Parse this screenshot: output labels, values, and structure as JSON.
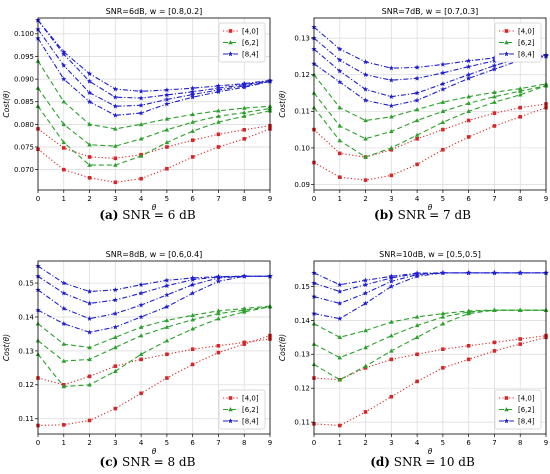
{
  "captions": [
    {
      "label": "(a)",
      "text": "SNR = 6 dB"
    },
    {
      "label": "(b)",
      "text": "SNR = 7 dB"
    },
    {
      "label": "(c)",
      "text": "SNR = 8 dB"
    },
    {
      "label": "(d)",
      "text": "SNR = 10 dB"
    }
  ],
  "colors": {
    "red": "#d62728",
    "green": "#2ca02c",
    "blue": "#1f1fd0"
  },
  "chart_data": [
    {
      "type": "line",
      "title": "SNR=6dB, w = [0.8,0.2]",
      "xlabel": "θ",
      "ylabel": "Cost(θ)",
      "xlim": [
        0,
        9
      ],
      "ylim": [
        0.0655,
        0.1035
      ],
      "xticks": [
        "0",
        "1",
        "2",
        "3",
        "4",
        "5",
        "6",
        "7",
        "8",
        "9"
      ],
      "yticks": [
        "0.070",
        "0.075",
        "0.080",
        "0.085",
        "0.090",
        "0.095",
        "0.100"
      ],
      "ytick_values": [
        0.07,
        0.075,
        0.08,
        0.085,
        0.09,
        0.095,
        0.1
      ],
      "grid": true,
      "legend_position": "top-right",
      "legend": [
        "[4,0]",
        "[6,2]",
        "[8,4]"
      ],
      "x": [
        0,
        1,
        2,
        3,
        4,
        5,
        6,
        7,
        8,
        9
      ],
      "series": [
        {
          "name": "[4,0]",
          "color": "red",
          "style": "dotted",
          "marker": "square",
          "values": [
            0.0745,
            0.07,
            0.0682,
            0.0672,
            0.068,
            0.0702,
            0.0728,
            0.075,
            0.0768,
            0.079
          ]
        },
        {
          "name": "[4,0]",
          "color": "red",
          "style": "dotted",
          "marker": "square",
          "values": [
            0.079,
            0.0748,
            0.0728,
            0.0725,
            0.0733,
            0.075,
            0.0765,
            0.0778,
            0.0788,
            0.0797
          ]
        },
        {
          "name": "[6,2]",
          "color": "green",
          "style": "dashed",
          "marker": "triangle",
          "values": [
            0.084,
            0.076,
            0.071,
            0.071,
            0.073,
            0.076,
            0.0785,
            0.0805,
            0.0818,
            0.083
          ]
        },
        {
          "name": "[6,2]",
          "color": "green",
          "style": "dashed",
          "marker": "triangle",
          "values": [
            0.088,
            0.08,
            0.0755,
            0.0752,
            0.0768,
            0.0788,
            0.0805,
            0.0818,
            0.0826,
            0.0835
          ]
        },
        {
          "name": "[6,2]",
          "color": "green",
          "style": "dashed",
          "marker": "triangle",
          "values": [
            0.094,
            0.085,
            0.08,
            0.079,
            0.08,
            0.0812,
            0.0822,
            0.083,
            0.0836,
            0.084
          ]
        },
        {
          "name": "[8,4]",
          "color": "blue",
          "style": "dashdot",
          "marker": "star",
          "values": [
            0.099,
            0.09,
            0.085,
            0.082,
            0.0825,
            0.0845,
            0.086,
            0.0872,
            0.0882,
            0.0895
          ]
        },
        {
          "name": "[8,4]",
          "color": "blue",
          "style": "dashdot",
          "marker": "star",
          "values": [
            0.101,
            0.093,
            0.087,
            0.084,
            0.0842,
            0.0855,
            0.0866,
            0.0876,
            0.0885,
            0.0895
          ]
        },
        {
          "name": "[8,4]",
          "color": "blue",
          "style": "dashdot",
          "marker": "star",
          "values": [
            0.103,
            0.0955,
            0.0895,
            0.086,
            0.0858,
            0.0865,
            0.0872,
            0.088,
            0.0888,
            0.0896
          ]
        },
        {
          "name": "[8,4]",
          "color": "blue",
          "style": "dashdot",
          "marker": "star",
          "values": [
            0.103,
            0.096,
            0.0912,
            0.0878,
            0.0873,
            0.0876,
            0.088,
            0.0885,
            0.089,
            0.0897
          ]
        }
      ]
    },
    {
      "type": "line",
      "title": "SNR=7dB, w = [0.7,0.3]",
      "xlabel": "θ",
      "ylabel": "Cost(θ)",
      "xlim": [
        0,
        9
      ],
      "ylim": [
        0.0885,
        0.1355
      ],
      "xticks": [
        "0",
        "1",
        "2",
        "3",
        "4",
        "5",
        "6",
        "7",
        "8",
        "9"
      ],
      "yticks": [
        "0.09",
        "0.10",
        "0.11",
        "0.12",
        "0.13"
      ],
      "ytick_values": [
        0.09,
        0.1,
        0.11,
        0.12,
        0.13
      ],
      "grid": true,
      "legend_position": "top-right",
      "legend": [
        "[4,0]",
        "[6,2]",
        "[8,4]"
      ],
      "x": [
        0,
        1,
        2,
        3,
        4,
        5,
        6,
        7,
        8,
        9
      ],
      "series": [
        {
          "name": "[4,0]",
          "color": "red",
          "style": "dotted",
          "marker": "square",
          "values": [
            0.096,
            0.092,
            0.0912,
            0.0925,
            0.0955,
            0.0995,
            0.103,
            0.106,
            0.1085,
            0.111
          ]
        },
        {
          "name": "[4,0]",
          "color": "red",
          "style": "dotted",
          "marker": "square",
          "values": [
            0.105,
            0.0985,
            0.0975,
            0.0995,
            0.1025,
            0.105,
            0.1075,
            0.1095,
            0.111,
            0.112
          ]
        },
        {
          "name": "[6,2]",
          "color": "green",
          "style": "dashed",
          "marker": "triangle",
          "values": [
            0.111,
            0.102,
            0.0975,
            0.1,
            0.1035,
            0.107,
            0.11,
            0.1125,
            0.1145,
            0.117
          ]
        },
        {
          "name": "[6,2]",
          "color": "green",
          "style": "dashed",
          "marker": "triangle",
          "values": [
            0.115,
            0.106,
            0.1025,
            0.1045,
            0.1075,
            0.11,
            0.1122,
            0.114,
            0.1155,
            0.117
          ]
        },
        {
          "name": "[6,2]",
          "color": "green",
          "style": "dashed",
          "marker": "triangle",
          "values": [
            0.12,
            0.111,
            0.1075,
            0.1085,
            0.1105,
            0.1125,
            0.114,
            0.1152,
            0.1162,
            0.1175
          ]
        },
        {
          "name": "[8,4]",
          "color": "blue",
          "style": "dashdot",
          "marker": "star",
          "values": [
            0.123,
            0.118,
            0.113,
            0.1115,
            0.113,
            0.116,
            0.119,
            0.1215,
            0.124,
            0.125
          ]
        },
        {
          "name": "[8,4]",
          "color": "blue",
          "style": "dashdot",
          "marker": "star",
          "values": [
            0.127,
            0.121,
            0.116,
            0.114,
            0.115,
            0.1175,
            0.12,
            0.1225,
            0.1245,
            0.1252
          ]
        },
        {
          "name": "[8,4]",
          "color": "blue",
          "style": "dashdot",
          "marker": "star",
          "values": [
            0.13,
            0.124,
            0.12,
            0.1185,
            0.119,
            0.1205,
            0.1222,
            0.1238,
            0.125,
            0.1253
          ]
        },
        {
          "name": "[8,4]",
          "color": "blue",
          "style": "dashdot",
          "marker": "star",
          "values": [
            0.133,
            0.127,
            0.1235,
            0.1218,
            0.122,
            0.1228,
            0.1238,
            0.1246,
            0.1252,
            0.1254
          ]
        }
      ]
    },
    {
      "type": "line",
      "title": "SNR=8dB, w = [0.6,0.4]",
      "xlabel": "θ",
      "ylabel": "Cost(θ)",
      "xlim": [
        0,
        9
      ],
      "ylim": [
        0.1055,
        0.1565
      ],
      "xticks": [
        "0",
        "1",
        "2",
        "3",
        "4",
        "5",
        "6",
        "7",
        "8",
        "9"
      ],
      "yticks": [
        "0.11",
        "0.12",
        "0.13",
        "0.14",
        "0.15"
      ],
      "ytick_values": [
        0.11,
        0.12,
        0.13,
        0.14,
        0.15
      ],
      "grid": true,
      "legend_position": "bottom-right",
      "legend": [
        "[4,0]",
        "[6,2]",
        "[8,4]"
      ],
      "x": [
        0,
        1,
        2,
        3,
        4,
        5,
        6,
        7,
        8,
        9
      ],
      "series": [
        {
          "name": "[4,0]",
          "color": "red",
          "style": "dotted",
          "marker": "square",
          "values": [
            0.108,
            0.1082,
            0.1095,
            0.113,
            0.1175,
            0.122,
            0.126,
            0.1295,
            0.132,
            0.1345
          ]
        },
        {
          "name": "[4,0]",
          "color": "red",
          "style": "dotted",
          "marker": "square",
          "values": [
            0.122,
            0.12,
            0.1225,
            0.1255,
            0.1275,
            0.129,
            0.1305,
            0.1315,
            0.1325,
            0.1335
          ]
        },
        {
          "name": "[6,2]",
          "color": "green",
          "style": "dashed",
          "marker": "triangle",
          "values": [
            0.129,
            0.1195,
            0.12,
            0.124,
            0.129,
            0.133,
            0.1365,
            0.1395,
            0.1415,
            0.143
          ]
        },
        {
          "name": "[6,2]",
          "color": "green",
          "style": "dashed",
          "marker": "triangle",
          "values": [
            0.133,
            0.127,
            0.1275,
            0.131,
            0.1345,
            0.137,
            0.1392,
            0.141,
            0.142,
            0.143
          ]
        },
        {
          "name": "[6,2]",
          "color": "green",
          "style": "dashed",
          "marker": "triangle",
          "values": [
            0.138,
            0.132,
            0.131,
            0.134,
            0.137,
            0.139,
            0.1405,
            0.1418,
            0.1425,
            0.1432
          ]
        },
        {
          "name": "[8,4]",
          "color": "blue",
          "style": "dashdot",
          "marker": "star",
          "values": [
            0.142,
            0.138,
            0.1355,
            0.137,
            0.14,
            0.143,
            0.147,
            0.1505,
            0.152,
            0.152
          ]
        },
        {
          "name": "[8,4]",
          "color": "blue",
          "style": "dashdot",
          "marker": "star",
          "values": [
            0.148,
            0.1425,
            0.1395,
            0.141,
            0.1435,
            0.1465,
            0.1495,
            0.1515,
            0.152,
            0.152
          ]
        },
        {
          "name": "[8,4]",
          "color": "blue",
          "style": "dashdot",
          "marker": "star",
          "values": [
            0.152,
            0.147,
            0.144,
            0.145,
            0.147,
            0.1492,
            0.151,
            0.1518,
            0.152,
            0.152
          ]
        },
        {
          "name": "[8,4]",
          "color": "blue",
          "style": "dashdot",
          "marker": "star",
          "values": [
            0.155,
            0.15,
            0.1475,
            0.148,
            0.1495,
            0.1508,
            0.1515,
            0.1519,
            0.152,
            0.152
          ]
        }
      ]
    },
    {
      "type": "line",
      "title": "SNR=10dB, w = [0.5,0.5]",
      "xlabel": "θ",
      "ylabel": "Cost(θ)",
      "xlim": [
        0,
        9
      ],
      "ylim": [
        0.1065,
        0.1575
      ],
      "xticks": [
        "0",
        "1",
        "2",
        "3",
        "4",
        "5",
        "6",
        "7",
        "8",
        "9"
      ],
      "yticks": [
        "0.11",
        "0.12",
        "0.13",
        "0.14",
        "0.15"
      ],
      "ytick_values": [
        0.11,
        0.12,
        0.13,
        0.14,
        0.15
      ],
      "grid": true,
      "legend_position": "bottom-right",
      "legend": [
        "[4,0]",
        "[6,2]",
        "[8,4]"
      ],
      "x": [
        0,
        1,
        2,
        3,
        4,
        5,
        6,
        7,
        8,
        9
      ],
      "series": [
        {
          "name": "[4,0]",
          "color": "red",
          "style": "dotted",
          "marker": "square",
          "values": [
            0.1095,
            0.109,
            0.113,
            0.1175,
            0.122,
            0.126,
            0.1285,
            0.131,
            0.133,
            0.135
          ]
        },
        {
          "name": "[4,0]",
          "color": "red",
          "style": "dotted",
          "marker": "square",
          "values": [
            0.123,
            0.1225,
            0.126,
            0.1285,
            0.13,
            0.1315,
            0.1325,
            0.1335,
            0.1345,
            0.1355
          ]
        },
        {
          "name": "[6,2]",
          "color": "green",
          "style": "dashed",
          "marker": "triangle",
          "values": [
            0.127,
            0.1225,
            0.1265,
            0.131,
            0.135,
            0.139,
            0.142,
            0.143,
            0.143,
            0.143
          ]
        },
        {
          "name": "[6,2]",
          "color": "green",
          "style": "dashed",
          "marker": "triangle",
          "values": [
            0.133,
            0.129,
            0.132,
            0.1355,
            0.1385,
            0.141,
            0.1425,
            0.143,
            0.143,
            0.143
          ]
        },
        {
          "name": "[6,2]",
          "color": "green",
          "style": "dashed",
          "marker": "triangle",
          "values": [
            0.139,
            0.135,
            0.137,
            0.1395,
            0.141,
            0.142,
            0.1428,
            0.143,
            0.143,
            0.143
          ]
        },
        {
          "name": "[8,4]",
          "color": "blue",
          "style": "dashdot",
          "marker": "star",
          "values": [
            0.142,
            0.1405,
            0.145,
            0.15,
            0.153,
            0.154,
            0.154,
            0.154,
            0.154,
            0.154
          ]
        },
        {
          "name": "[8,4]",
          "color": "blue",
          "style": "dashdot",
          "marker": "star",
          "values": [
            0.147,
            0.145,
            0.148,
            0.1515,
            0.1535,
            0.154,
            0.154,
            0.154,
            0.154,
            0.154
          ]
        },
        {
          "name": "[8,4]",
          "color": "blue",
          "style": "dashdot",
          "marker": "star",
          "values": [
            0.151,
            0.1485,
            0.1505,
            0.1525,
            0.1538,
            0.154,
            0.154,
            0.154,
            0.154,
            0.154
          ]
        },
        {
          "name": "[8,4]",
          "color": "blue",
          "style": "dashdot",
          "marker": "star",
          "values": [
            0.154,
            0.1505,
            0.1518,
            0.153,
            0.1539,
            0.154,
            0.154,
            0.154,
            0.154,
            0.154
          ]
        }
      ]
    }
  ]
}
